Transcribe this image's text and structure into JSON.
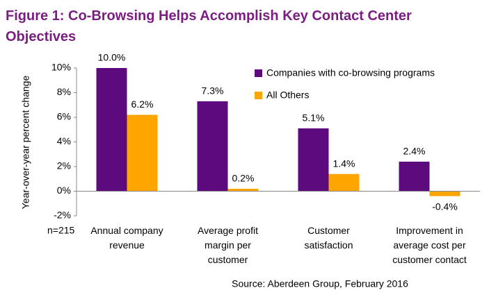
{
  "chart_data": {
    "type": "bar",
    "title": "Figure 1: Co-Browsing Helps Accomplish Key Contact Center Objectives",
    "y_label": "Year-over-year percent change",
    "annotation": "n=215",
    "source": "Source: Aberdeen Group, February 2016",
    "categories": [
      [
        "Annual company",
        "revenue"
      ],
      [
        "Average profit",
        "margin per",
        "customer"
      ],
      [
        "Customer",
        "satisfaction"
      ],
      [
        "Improvement in",
        "average cost per",
        "customer contact"
      ]
    ],
    "series": [
      {
        "name": "Companies with co-browsing programs",
        "color": "#5c0a7e",
        "values": [
          10.0,
          7.3,
          5.1,
          2.4
        ],
        "value_labels": [
          "10.0%",
          "7.3%",
          "5.1%",
          "2.4%"
        ]
      },
      {
        "name": "All Others",
        "color": "#ffa500",
        "values": [
          6.2,
          0.2,
          1.4,
          -0.4
        ],
        "value_labels": [
          "6.2%",
          "0.2%",
          "1.4%",
          "-0.4%"
        ]
      }
    ],
    "ylim": [
      -2,
      10
    ],
    "yticks": [
      {
        "value": -2,
        "label": "-2%"
      },
      {
        "value": 0,
        "label": "0%"
      },
      {
        "value": 2,
        "label": "2%"
      },
      {
        "value": 4,
        "label": "4%"
      },
      {
        "value": 6,
        "label": "6%"
      },
      {
        "value": 8,
        "label": "8%"
      },
      {
        "value": 10,
        "label": "10%"
      }
    ],
    "legend": "top-right"
  }
}
